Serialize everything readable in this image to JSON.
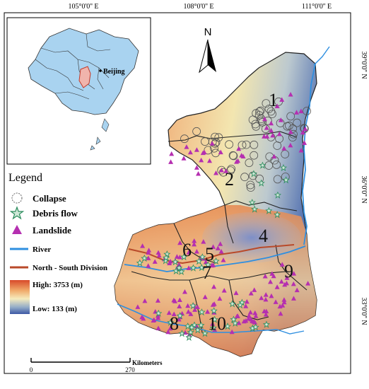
{
  "coords": {
    "top": [
      "105°0'0'' E",
      "108°0'0'' E",
      "111°0'0'' E"
    ],
    "right": [
      "39°0'0'' N",
      "36°0'0'' N",
      "33°0'0'' N"
    ]
  },
  "north_label": "N",
  "inset": {
    "city": "Beijing"
  },
  "legend": {
    "title": "Legend",
    "items": [
      {
        "symbol": "open-circle",
        "label": "Collapse"
      },
      {
        "symbol": "green-star",
        "label": "Debris flow"
      },
      {
        "symbol": "magenta-triangle",
        "label": "Landslide"
      },
      {
        "symbol": "blue-line",
        "label": "River"
      },
      {
        "symbol": "red-line",
        "label": "North - South Division"
      }
    ],
    "elevation": {
      "high": "High: 3753 (m)",
      "low": "Low: 133 (m)"
    }
  },
  "colors": {
    "river": "#2f8fe0",
    "division": "#b94a2a",
    "high": "#e86a3a",
    "mid": "#f2e3a6",
    "low": "#3a57a8",
    "landslide": "#b52fb0",
    "debris": "#2a8c5c"
  },
  "regions": [
    "1",
    "2",
    "4",
    "5",
    "6",
    "7",
    "8",
    "9",
    "10"
  ],
  "scale": {
    "start": "0",
    "end": "270",
    "unit": "Kilometers"
  }
}
